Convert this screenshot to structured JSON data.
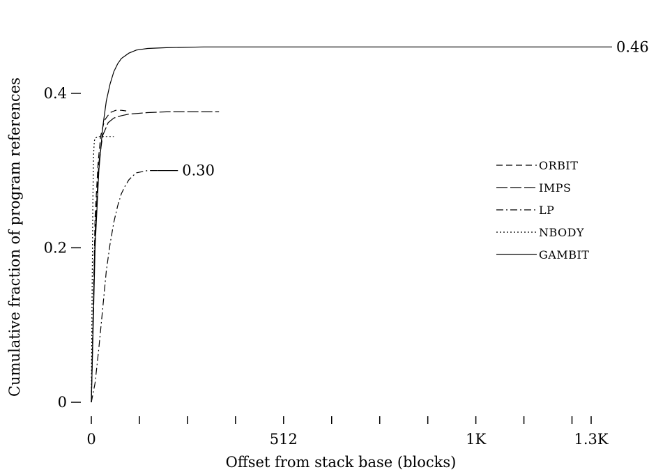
{
  "chart_data": {
    "type": "line",
    "title": "",
    "xlabel": "Offset from stack base (blocks)",
    "ylabel": "Cumulative fraction of program references",
    "xlim": [
      0,
      1331
    ],
    "ylim": [
      0,
      0.5
    ],
    "grid": false,
    "legend_position": "right",
    "x_ticks": [
      {
        "value": 0,
        "label": "0"
      },
      {
        "value": 128,
        "label": ""
      },
      {
        "value": 256,
        "label": ""
      },
      {
        "value": 384,
        "label": ""
      },
      {
        "value": 512,
        "label": "512"
      },
      {
        "value": 640,
        "label": ""
      },
      {
        "value": 768,
        "label": ""
      },
      {
        "value": 896,
        "label": ""
      },
      {
        "value": 1024,
        "label": "1K"
      },
      {
        "value": 1152,
        "label": ""
      },
      {
        "value": 1280,
        "label": ""
      },
      {
        "value": 1331,
        "label": "1.3K"
      }
    ],
    "y_ticks": [
      {
        "value": 0,
        "label": "0"
      },
      {
        "value": 0.2,
        "label": "0.2"
      },
      {
        "value": 0.4,
        "label": "0.4"
      }
    ],
    "series": [
      {
        "name": "ORBIT",
        "dash": "9,5",
        "x": [
          0,
          4,
          10,
          18,
          25,
          35,
          50,
          65,
          80,
          95
        ],
        "y": [
          0,
          0.1,
          0.24,
          0.31,
          0.345,
          0.365,
          0.375,
          0.378,
          0.378,
          0.377
        ]
      },
      {
        "name": "IMPS",
        "dash": "16,4",
        "x": [
          0,
          4,
          10,
          20,
          30,
          45,
          60,
          80,
          100,
          150,
          200,
          250,
          300,
          340
        ],
        "y": [
          0,
          0.09,
          0.22,
          0.31,
          0.345,
          0.362,
          0.368,
          0.371,
          0.373,
          0.375,
          0.376,
          0.376,
          0.376,
          0.376
        ]
      },
      {
        "name": "LP",
        "dash": "10,4,2,4",
        "x": [
          0,
          10,
          20,
          30,
          40,
          50,
          60,
          70,
          80,
          90,
          100,
          110,
          120,
          140,
          150,
          160,
          175
        ],
        "y": [
          0,
          0.025,
          0.07,
          0.12,
          0.17,
          0.205,
          0.233,
          0.254,
          0.27,
          0.28,
          0.288,
          0.293,
          0.297,
          0.299,
          0.3,
          0.3,
          0.3
        ]
      },
      {
        "name": "NBODY",
        "dash": "2,3",
        "x": [
          0,
          2,
          4,
          6,
          8,
          10,
          20,
          40,
          60
        ],
        "y": [
          0,
          0.14,
          0.26,
          0.32,
          0.338,
          0.342,
          0.344,
          0.344,
          0.344
        ]
      },
      {
        "name": "GAMBIT",
        "dash": "",
        "x": [
          0,
          4,
          10,
          20,
          30,
          40,
          50,
          60,
          70,
          80,
          100,
          120,
          150,
          200,
          300,
          500,
          800,
          1100,
          1331
        ],
        "y": [
          0,
          0.08,
          0.2,
          0.3,
          0.355,
          0.39,
          0.412,
          0.428,
          0.438,
          0.445,
          0.452,
          0.456,
          0.458,
          0.459,
          0.46,
          0.46,
          0.46,
          0.46,
          0.46
        ]
      }
    ],
    "annotations": [
      {
        "text": "0.46",
        "series": "GAMBIT"
      },
      {
        "text": "0.30",
        "series": "LP"
      }
    ]
  }
}
